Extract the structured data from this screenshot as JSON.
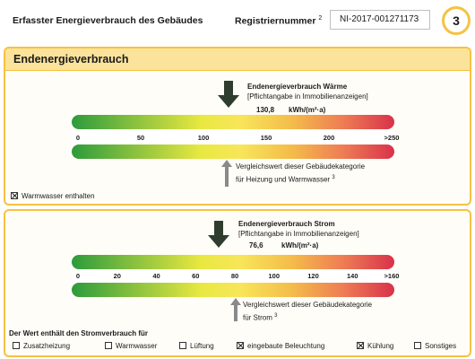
{
  "header": {
    "title": "Erfasster Energieverbrauch des Gebäudes",
    "reg_label": "Registriernummer",
    "reg_sup": "2",
    "reg_number": "NI-2017-001271173",
    "page_number": "3"
  },
  "panel_title": "Endenergieverbrauch",
  "heat": {
    "label_title": "Endenergieverbrauch Wärme",
    "label_note": "[Pflichtangabe in Immobilienanzeigen]",
    "value": "130,8",
    "unit": "kWh/(m²·a)",
    "value_numeric": 130.8,
    "ticks": [
      "0",
      "50",
      "100",
      "150",
      "200",
      ">250"
    ],
    "compare_line1": "Vergleichswert dieser Gebäudekategorie",
    "compare_line2": "für Heizung und Warmwasser",
    "compare_sup": "3",
    "warmwater_label": "Warmwasser enthalten",
    "warmwater_checked": true
  },
  "power": {
    "label_title": "Endenergieverbrauch Strom",
    "label_note": "[Pflichtangabe in Immobilienanzeigen]",
    "value": "76,6",
    "unit": "kWh/(m²·a)",
    "value_numeric": 76.6,
    "ticks": [
      "0",
      "20",
      "40",
      "60",
      "80",
      "100",
      "120",
      "140",
      ">160"
    ],
    "compare_line1": "Vergleichswert dieser Gebäudekategorie",
    "compare_line2": "für Strom",
    "compare_sup": "3"
  },
  "includes_title": "Der Wert enthält den Stromverbrauch für",
  "includes": [
    {
      "label": "Zusatzheizung",
      "checked": false
    },
    {
      "label": "Warmwasser",
      "checked": false
    },
    {
      "label": "Lüftung",
      "checked": false
    },
    {
      "label": "eingebaute Beleuchtung",
      "checked": true
    },
    {
      "label": "Kühlung",
      "checked": true
    },
    {
      "label": "Sonstiges",
      "checked": false
    }
  ],
  "colors": {
    "accent": "#f5c242",
    "panel_header": "#fbe39b",
    "arrow": "#2f3d2f",
    "compare_arrow": "#8a8a8a"
  }
}
